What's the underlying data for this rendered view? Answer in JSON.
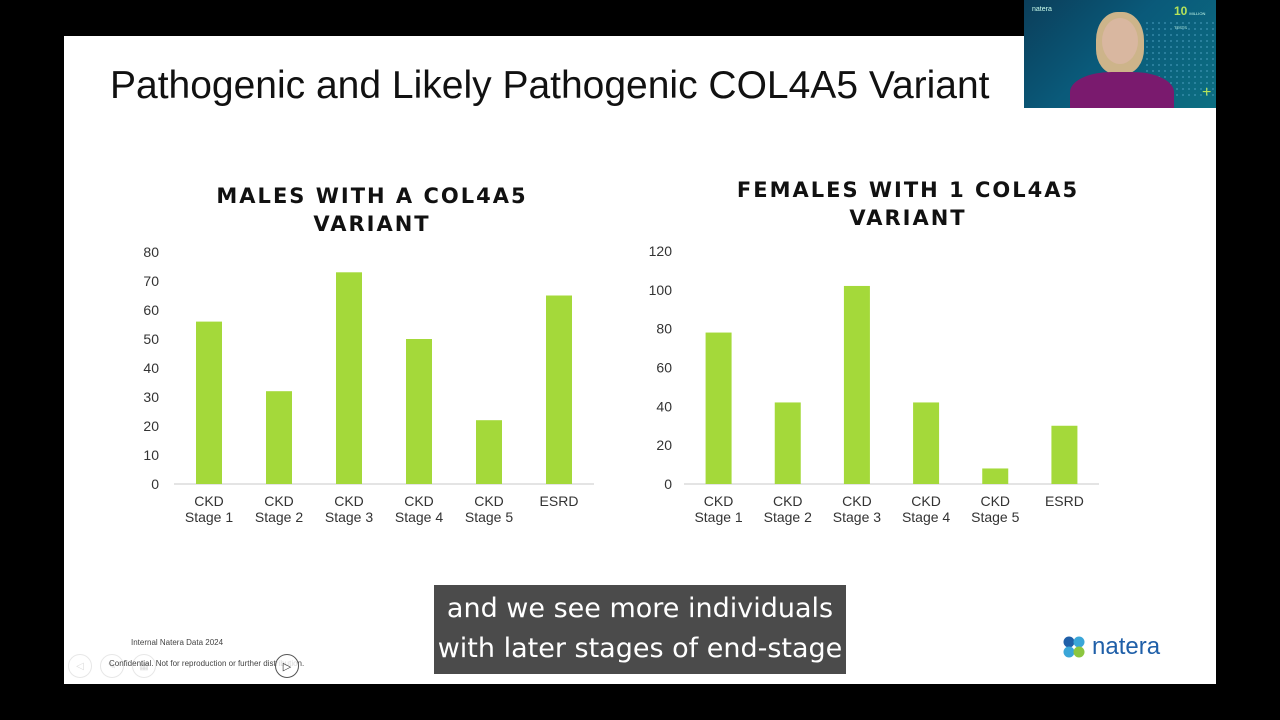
{
  "slide": {
    "title": "Pathogenic and Likely Pathogenic COL4A5 Variant",
    "footnote": "Internal Natera Data 2024",
    "confidential": "Confidential. Not for reproduction or further distribution."
  },
  "chart_data": [
    {
      "type": "bar",
      "title_lines": [
        "MALES WITH A COL4A5",
        "VARIANT"
      ],
      "categories": [
        [
          "CKD",
          "Stage 1"
        ],
        [
          "CKD",
          "Stage 2"
        ],
        [
          "CKD",
          "Stage 3"
        ],
        [
          "CKD",
          "Stage 4"
        ],
        [
          "CKD",
          "Stage 5"
        ],
        [
          "ESRD"
        ]
      ],
      "values": [
        56,
        32,
        73,
        50,
        22,
        65
      ],
      "ylim": [
        0,
        80
      ],
      "yticks": [
        0,
        10,
        20,
        30,
        40,
        50,
        60,
        70,
        80
      ],
      "bar_color": "#a4d93a",
      "grid": false
    },
    {
      "type": "bar",
      "title_lines": [
        "FEMALES WITH 1 COL4A5",
        "VARIANT"
      ],
      "categories": [
        [
          "CKD",
          "Stage 1"
        ],
        [
          "CKD",
          "Stage 2"
        ],
        [
          "CKD",
          "Stage 3"
        ],
        [
          "CKD",
          "Stage 4"
        ],
        [
          "CKD",
          "Stage 5"
        ],
        [
          "ESRD"
        ]
      ],
      "values": [
        78,
        42,
        102,
        42,
        8,
        30
      ],
      "ylim": [
        0,
        120
      ],
      "yticks": [
        0,
        20,
        40,
        60,
        80,
        100,
        120
      ],
      "bar_color": "#a4d93a",
      "grid": false
    }
  ],
  "caption": {
    "line1": "and we see more individuals",
    "line2": "with later stages of end-stage"
  },
  "logo": {
    "word": "natera"
  },
  "webcam": {
    "brand": "natera",
    "badge": "10",
    "badge_sub": "MILLION TESTS"
  },
  "colors": {
    "accent_green": "#a4d93a",
    "brand_blue": "#1f5fa8"
  }
}
